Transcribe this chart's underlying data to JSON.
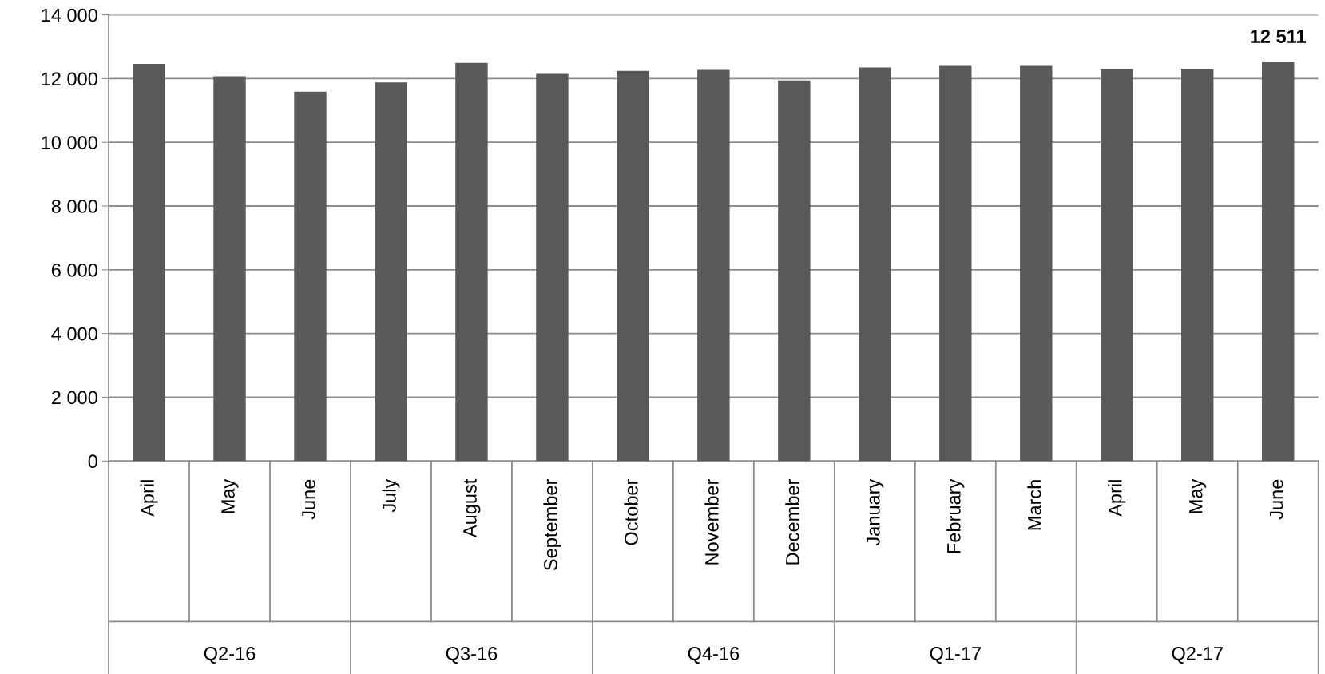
{
  "chart_data": {
    "type": "bar",
    "categories": [
      "April",
      "May",
      "June",
      "July",
      "August",
      "September",
      "October",
      "November",
      "December",
      "January",
      "February",
      "March",
      "April",
      "May",
      "June"
    ],
    "values": [
      12460,
      12070,
      11590,
      11880,
      12490,
      12150,
      12240,
      12270,
      11940,
      12350,
      12400,
      12400,
      12300,
      12310,
      12511
    ],
    "value_labels": [
      null,
      null,
      null,
      null,
      null,
      null,
      null,
      null,
      null,
      null,
      null,
      null,
      null,
      null,
      "12 511"
    ],
    "color": "#595959",
    "ylim": [
      0,
      14000
    ],
    "yticks": [
      {
        "value": 0,
        "label": "0"
      },
      {
        "value": 2000,
        "label": "2 000"
      },
      {
        "value": 4000,
        "label": "4 000"
      },
      {
        "value": 6000,
        "label": "6 000"
      },
      {
        "value": 8000,
        "label": "8 000"
      },
      {
        "value": 10000,
        "label": "10 000"
      },
      {
        "value": 12000,
        "label": "12 000"
      },
      {
        "value": 14000,
        "label": "14 000"
      }
    ],
    "grid": "y",
    "annotations": [
      "Q2-16",
      "Q3-16",
      "Q4-16",
      "Q1-17",
      "Q2-17"
    ]
  }
}
